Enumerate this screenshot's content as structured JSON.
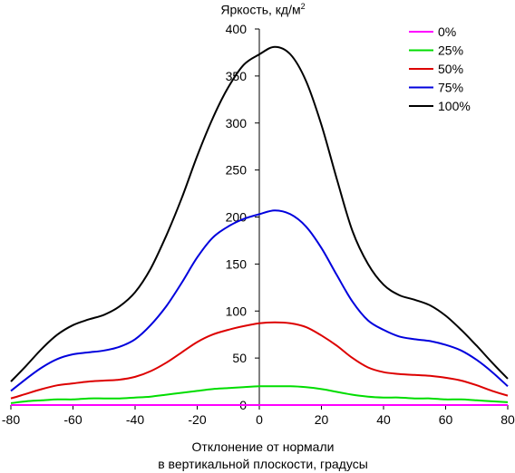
{
  "chart_data": {
    "type": "line",
    "ylabel_main": "Яркость, кд/м",
    "ylabel_sup": "2",
    "xlabel_line1": "Отклонение от нормали",
    "xlabel_line2": "в вертикальной плоскости, градусы",
    "xlim": [
      -80,
      80
    ],
    "ylim": [
      0,
      400
    ],
    "xticks": [
      -80,
      -60,
      -40,
      -20,
      0,
      20,
      40,
      60,
      80
    ],
    "yticks": [
      0,
      50,
      100,
      150,
      200,
      250,
      300,
      350,
      400
    ],
    "grid": false,
    "legend_position": "top-right",
    "x": [
      -80,
      -75,
      -70,
      -65,
      -60,
      -55,
      -50,
      -45,
      -40,
      -35,
      -30,
      -25,
      -20,
      -15,
      -10,
      -5,
      0,
      5,
      10,
      15,
      20,
      25,
      30,
      35,
      40,
      45,
      50,
      55,
      60,
      65,
      70,
      75,
      80
    ],
    "series": [
      {
        "name": "0%",
        "color": "#ff00ff",
        "values": [
          0,
          0,
          0,
          0,
          0,
          0,
          0,
          0,
          0,
          0,
          0,
          0,
          0,
          0,
          0,
          0,
          0,
          0,
          0,
          0,
          0,
          0,
          0,
          0,
          0,
          0,
          0,
          0,
          0,
          0,
          0,
          0,
          0
        ]
      },
      {
        "name": "25%",
        "color": "#00dd00",
        "values": [
          2,
          4,
          5,
          6,
          6,
          7,
          7,
          7,
          8,
          9,
          11,
          13,
          15,
          17,
          18,
          19,
          20,
          20,
          20,
          19,
          17,
          14,
          11,
          9,
          8,
          8,
          7,
          7,
          6,
          6,
          5,
          4,
          3
        ]
      },
      {
        "name": "50%",
        "color": "#dd0000",
        "values": [
          7,
          12,
          17,
          21,
          23,
          25,
          26,
          27,
          30,
          36,
          45,
          56,
          67,
          75,
          80,
          84,
          87,
          88,
          87,
          83,
          74,
          63,
          50,
          40,
          35,
          33,
          32,
          31,
          29,
          26,
          21,
          15,
          10
        ]
      },
      {
        "name": "75%",
        "color": "#0000dd",
        "values": [
          15,
          28,
          40,
          49,
          54,
          56,
          58,
          62,
          70,
          85,
          105,
          130,
          157,
          178,
          190,
          198,
          203,
          207,
          203,
          190,
          167,
          138,
          110,
          90,
          80,
          73,
          70,
          68,
          64,
          58,
          48,
          35,
          20
        ]
      },
      {
        "name": "100%",
        "color": "#000000",
        "values": [
          25,
          42,
          60,
          75,
          85,
          91,
          96,
          105,
          120,
          145,
          180,
          220,
          265,
          305,
          338,
          362,
          373,
          381,
          373,
          345,
          298,
          240,
          185,
          150,
          128,
          117,
          112,
          106,
          95,
          80,
          63,
          45,
          28
        ]
      }
    ]
  }
}
